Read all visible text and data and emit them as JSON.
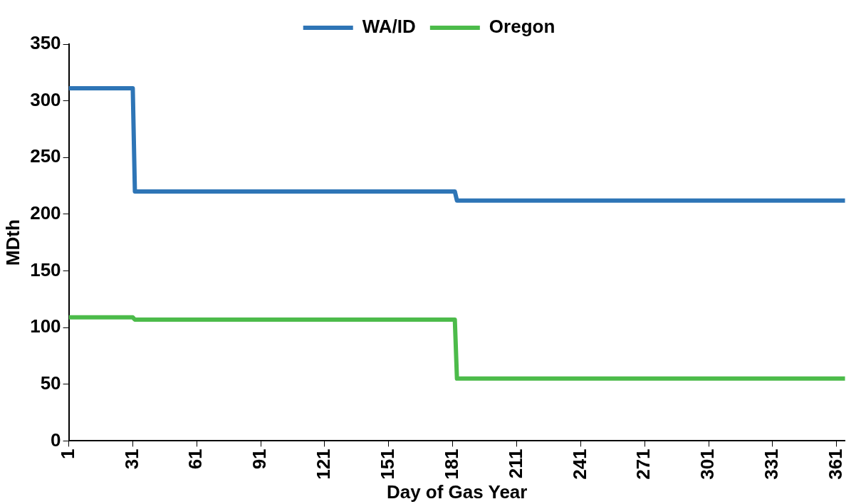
{
  "chart_data": {
    "type": "line",
    "xlabel": "Day of Gas Year",
    "ylabel": "MDth",
    "x": [
      1,
      31,
      32,
      182,
      183,
      365
    ],
    "series": [
      {
        "name": "WA/ID",
        "color": "#2e75b6",
        "values": [
          311,
          311,
          220,
          220,
          212,
          212
        ]
      },
      {
        "name": "Oregon",
        "color": "#4cbb4a",
        "values": [
          109,
          109,
          107,
          107,
          55,
          55
        ]
      }
    ],
    "xlim": [
      1,
      365
    ],
    "xticks": [
      1,
      31,
      61,
      91,
      121,
      151,
      181,
      211,
      241,
      271,
      301,
      331,
      361
    ],
    "ylim": [
      0,
      350
    ],
    "yticks": [
      0,
      50,
      100,
      150,
      200,
      250,
      300,
      350
    ],
    "grid": false,
    "legend": "top",
    "marker": "none",
    "line_style": "solid"
  }
}
